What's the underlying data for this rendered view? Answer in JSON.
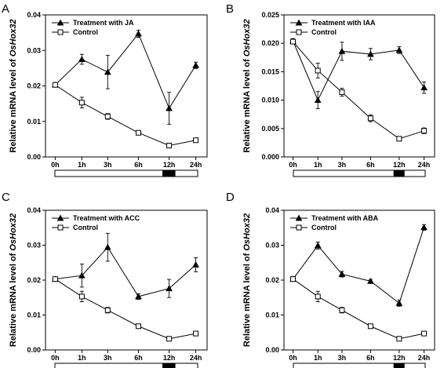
{
  "figure": {
    "panels": [
      "A",
      "B",
      "C",
      "D"
    ]
  },
  "chart_data": [
    {
      "panel": "A",
      "type": "line",
      "categories": [
        "0h",
        "1h",
        "3h",
        "6h",
        "12h",
        "24h"
      ],
      "ylabel_prefix": "Relative mRNA level of ",
      "ylabel_gene": "OsHox32",
      "ylim": [
        0,
        0.04
      ],
      "yticks": [
        "0.00",
        "0.01",
        "0.02",
        "0.03",
        "0.04"
      ],
      "ytick_values": [
        0,
        0.01,
        0.02,
        0.03,
        0.04
      ],
      "grid": false,
      "legend_position": "top-left",
      "light_dark_bar": [
        0,
        0,
        0,
        0,
        1,
        0
      ],
      "series": [
        {
          "name": "Treatment with JA",
          "marker": "filled-triangle",
          "values": [
            0.0203,
            0.0275,
            0.0239,
            0.0347,
            0.0137,
            0.0258
          ],
          "errors": [
            0.0006,
            0.0014,
            0.0047,
            0.001,
            0.0045,
            0.0009
          ]
        },
        {
          "name": "Control",
          "marker": "open-square",
          "values": [
            0.0203,
            0.0153,
            0.0114,
            0.0068,
            0.0032,
            0.0047
          ],
          "errors": [
            0.0006,
            0.0015,
            0.0008,
            0.0006,
            0.0002,
            0.0006
          ]
        }
      ]
    },
    {
      "panel": "B",
      "type": "line",
      "categories": [
        "0h",
        "1h",
        "3h",
        "6h",
        "12h",
        "24h"
      ],
      "ylabel_prefix": "Relative mRNA level of ",
      "ylabel_gene": "OsHox32",
      "ylim": [
        0,
        0.025
      ],
      "yticks": [
        "0.000",
        "0.005",
        "0.010",
        "0.015",
        "0.020",
        "0.025"
      ],
      "ytick_values": [
        0,
        0.005,
        0.01,
        0.015,
        0.02,
        0.025
      ],
      "grid": false,
      "legend_position": "top-left",
      "light_dark_bar": [
        0,
        0,
        0,
        0,
        1,
        0
      ],
      "series": [
        {
          "name": "Treatment with IAA",
          "marker": "filled-triangle",
          "values": [
            0.0204,
            0.01,
            0.0186,
            0.0181,
            0.0188,
            0.0122
          ],
          "errors": [
            0.0004,
            0.0015,
            0.0016,
            0.001,
            0.0006,
            0.001
          ]
        },
        {
          "name": "Control",
          "marker": "open-square",
          "values": [
            0.0203,
            0.0152,
            0.0114,
            0.0068,
            0.0032,
            0.0046
          ],
          "errors": [
            0.0004,
            0.0013,
            0.0007,
            0.0006,
            0.0002,
            0.0005
          ]
        }
      ]
    },
    {
      "panel": "C",
      "type": "line",
      "categories": [
        "0h",
        "1h",
        "3h",
        "6h",
        "12h",
        "24h"
      ],
      "ylabel_prefix": "Relative mRNA level of ",
      "ylabel_gene": "OsHox32",
      "ylim": [
        0,
        0.04
      ],
      "yticks": [
        "0.00",
        "0.01",
        "0.02",
        "0.03",
        "0.04"
      ],
      "ytick_values": [
        0,
        0.01,
        0.02,
        0.03,
        0.04
      ],
      "grid": false,
      "legend_position": "top-left",
      "light_dark_bar": [
        0,
        0,
        0,
        0,
        1,
        0
      ],
      "series": [
        {
          "name": "Treatment with ACC",
          "marker": "filled-triangle",
          "values": [
            0.0203,
            0.0213,
            0.0294,
            0.0153,
            0.0176,
            0.0244
          ],
          "errors": [
            0.0006,
            0.0033,
            0.004,
            0.0008,
            0.0026,
            0.002
          ]
        },
        {
          "name": "Control",
          "marker": "open-square",
          "values": [
            0.0203,
            0.0153,
            0.0114,
            0.0068,
            0.0032,
            0.0047
          ],
          "errors": [
            0.0006,
            0.0015,
            0.0008,
            0.0006,
            0.0002,
            0.0006
          ]
        }
      ]
    },
    {
      "panel": "D",
      "type": "line",
      "categories": [
        "0h",
        "1h",
        "3h",
        "6h",
        "12h",
        "24h"
      ],
      "ylabel_prefix": "Relative mRNA level of ",
      "ylabel_gene": "OsHox32",
      "ylim": [
        0,
        0.04
      ],
      "yticks": [
        "0.00",
        "0.01",
        "0.02",
        "0.03",
        "0.04"
      ],
      "ytick_values": [
        0,
        0.01,
        0.02,
        0.03,
        0.04
      ],
      "grid": false,
      "legend_position": "top-left",
      "light_dark_bar": [
        0,
        0,
        0,
        0,
        1,
        0
      ],
      "series": [
        {
          "name": "Treatment with ABA",
          "marker": "filled-triangle",
          "values": [
            0.0203,
            0.0299,
            0.0217,
            0.0197,
            0.0134,
            0.0351
          ],
          "errors": [
            0.0006,
            0.001,
            0.0008,
            0.0005,
            0.0009,
            0.0008
          ]
        },
        {
          "name": "Control",
          "marker": "open-square",
          "values": [
            0.0203,
            0.0153,
            0.0114,
            0.0068,
            0.0032,
            0.0047
          ],
          "errors": [
            0.0006,
            0.0015,
            0.0008,
            0.0006,
            0.0002,
            0.0006
          ]
        }
      ]
    }
  ]
}
